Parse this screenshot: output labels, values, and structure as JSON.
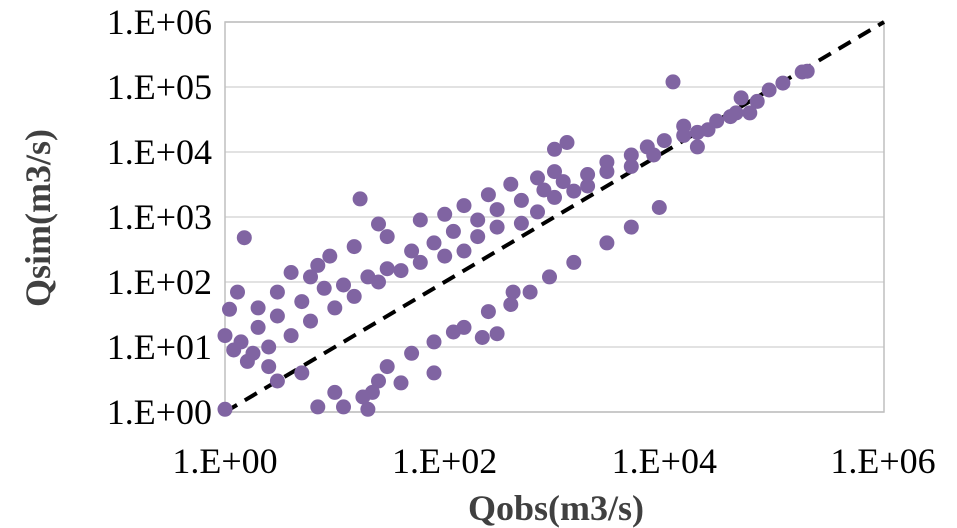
{
  "chart_data": {
    "type": "scatter",
    "title": "",
    "xlabel": "Qobs(m3/s)",
    "ylabel": "Qsim(m3/s)",
    "x_scale": "log",
    "y_scale": "log",
    "xlim": [
      1,
      1000000
    ],
    "ylim": [
      1,
      1000000
    ],
    "x_ticks": [
      1,
      100,
      10000,
      1000000
    ],
    "x_tick_labels": [
      "1.E+00",
      "1.E+02",
      "1.E+04",
      "1.E+06"
    ],
    "y_ticks": [
      1,
      10,
      100,
      1000,
      10000,
      100000,
      1000000
    ],
    "y_tick_labels": [
      "1.E+00",
      "1.E+01",
      "1.E+02",
      "1.E+03",
      "1.E+04",
      "1.E+05",
      "1.E+06"
    ],
    "grid": "horizontal",
    "legend": "none",
    "marker_color": "#8064A2",
    "reference_line": {
      "style": "dashed",
      "color": "#000000",
      "x": [
        1,
        1000000
      ],
      "y": [
        1,
        1000000
      ]
    },
    "series": [
      {
        "points": [
          [
            1.5,
            480
          ],
          [
            17,
            1900
          ],
          [
            4,
            140
          ],
          [
            7,
            180
          ],
          [
            25,
            780
          ],
          [
            1.0,
            1.1
          ],
          [
            1.3,
            70
          ],
          [
            1.1,
            38
          ],
          [
            1.0,
            15
          ],
          [
            1.2,
            9
          ],
          [
            1.6,
            6
          ],
          [
            2.5,
            5
          ],
          [
            3,
            3
          ],
          [
            5,
            4
          ],
          [
            7,
            1.2
          ],
          [
            10,
            2
          ],
          [
            12,
            1.2
          ],
          [
            20,
            1.1
          ],
          [
            22,
            2
          ],
          [
            18,
            1.7
          ],
          [
            25,
            3
          ],
          [
            40,
            2.8
          ],
          [
            80,
            4
          ],
          [
            120,
            17
          ],
          [
            220,
            14
          ],
          [
            300,
            16
          ],
          [
            420,
            70
          ],
          [
            1000,
            11000
          ],
          [
            1300,
            14000
          ],
          [
            12000,
            120000
          ],
          [
            50000,
            68000
          ],
          [
            60000,
            40000
          ],
          [
            180000,
            170000
          ],
          [
            200000,
            175000
          ],
          [
            120000,
            115000
          ],
          [
            90000,
            90000
          ],
          [
            30000,
            30000
          ],
          [
            15000,
            25000
          ],
          [
            20000,
            20000
          ],
          [
            8000,
            9000
          ],
          [
            5000,
            6000
          ],
          [
            3000,
            5000
          ],
          [
            2000,
            3000
          ],
          [
            1500,
            2500
          ],
          [
            1000,
            2000
          ],
          [
            700,
            1200
          ],
          [
            500,
            800
          ],
          [
            300,
            700
          ],
          [
            200,
            500
          ],
          [
            150,
            300
          ],
          [
            100,
            250
          ],
          [
            60,
            200
          ],
          [
            40,
            150
          ],
          [
            25,
            100
          ],
          [
            15,
            60
          ],
          [
            10,
            40
          ],
          [
            6,
            25
          ],
          [
            4,
            15
          ],
          [
            2.5,
            10
          ],
          [
            1.8,
            8
          ],
          [
            1.4,
            12
          ],
          [
            2,
            20
          ],
          [
            3,
            30
          ],
          [
            5,
            50
          ],
          [
            8,
            80
          ],
          [
            12,
            90
          ],
          [
            20,
            120
          ],
          [
            30,
            160
          ],
          [
            50,
            300
          ],
          [
            80,
            400
          ],
          [
            120,
            600
          ],
          [
            200,
            900
          ],
          [
            300,
            1300
          ],
          [
            500,
            1800
          ],
          [
            800,
            2600
          ],
          [
            1200,
            3500
          ],
          [
            2000,
            4500
          ],
          [
            3000,
            7000
          ],
          [
            5000,
            9000
          ],
          [
            7000,
            12000
          ],
          [
            10000,
            15000
          ],
          [
            15000,
            18000
          ],
          [
            25000,
            22000
          ],
          [
            40000,
            35000
          ],
          [
            9,
            250
          ],
          [
            6,
            120
          ],
          [
            3,
            70
          ],
          [
            2,
            40
          ],
          [
            15,
            350
          ],
          [
            30,
            500
          ],
          [
            60,
            900
          ],
          [
            100,
            1100
          ],
          [
            150,
            1500
          ],
          [
            250,
            2200
          ],
          [
            400,
            3200
          ],
          [
            700,
            4000
          ],
          [
            1000,
            5000
          ],
          [
            30,
            5
          ],
          [
            50,
            8
          ],
          [
            80,
            12
          ],
          [
            150,
            20
          ],
          [
            250,
            35
          ],
          [
            400,
            45
          ],
          [
            600,
            70
          ],
          [
            900,
            120
          ],
          [
            1500,
            200
          ],
          [
            3000,
            400
          ],
          [
            5000,
            700
          ],
          [
            9000,
            1400
          ],
          [
            20000,
            12000
          ],
          [
            45000,
            40000
          ],
          [
            70000,
            60000
          ]
        ]
      }
    ]
  }
}
